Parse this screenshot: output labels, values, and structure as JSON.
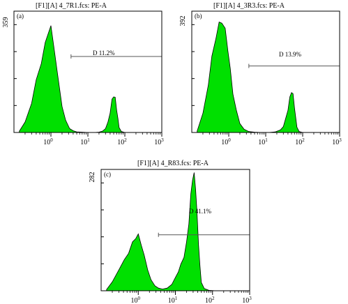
{
  "chart_data": [
    {
      "type": "area",
      "panel_label": "(a)",
      "title": "[F1][A] 4_7R1.fcs: PE-A",
      "ymax_label": "359",
      "xscale": "log",
      "xlim": [
        0.1,
        1000
      ],
      "ylim": [
        0,
        359
      ],
      "xticks": [
        {
          "value": 1,
          "label": "10",
          "exp": "0"
        },
        {
          "value": 10,
          "label": "10",
          "exp": "1"
        },
        {
          "value": 100,
          "label": "10",
          "exp": "2"
        },
        {
          "value": 1000,
          "label": "10",
          "exp": "3"
        }
      ],
      "fill_color": "#00e000",
      "x": [
        0.14,
        0.2,
        0.3,
        0.4,
        0.55,
        0.7,
        0.85,
        1.0,
        1.2,
        1.5,
        2.0,
        2.5,
        3.2,
        4.0,
        5.0,
        7.0,
        10,
        15,
        20,
        25,
        30,
        35,
        40,
        45,
        50,
        55,
        60,
        65,
        70,
        80,
        100,
        150
      ],
      "y": [
        4,
        30,
        90,
        150,
        210,
        260,
        300,
        310,
        260,
        170,
        80,
        35,
        12,
        5,
        2,
        1,
        0,
        0,
        1,
        4,
        12,
        30,
        60,
        95,
        110,
        100,
        70,
        40,
        15,
        3,
        0,
        0
      ],
      "gate": {
        "label": "D 11.2%",
        "x_start": 3.5,
        "x_end": 1000,
        "y": 225
      }
    },
    {
      "type": "area",
      "panel_label": "(b)",
      "title": "[F1][A] 4_3R3.fcs: PE-A",
      "ymax_label": "392",
      "xscale": "log",
      "xlim": [
        0.1,
        1000
      ],
      "ylim": [
        0,
        392
      ],
      "xticks": [
        {
          "value": 1,
          "label": "10",
          "exp": "0"
        },
        {
          "value": 10,
          "label": "10",
          "exp": "1"
        },
        {
          "value": 100,
          "label": "10",
          "exp": "2"
        },
        {
          "value": 1000,
          "label": "10",
          "exp": "3"
        }
      ],
      "fill_color": "#00e000",
      "x": [
        0.14,
        0.2,
        0.28,
        0.35,
        0.45,
        0.55,
        0.65,
        0.8,
        0.95,
        1.1,
        1.3,
        1.6,
        2.0,
        2.6,
        3.5,
        5.0,
        8,
        12,
        18,
        25,
        30,
        35,
        40,
        45,
        50,
        55,
        60,
        65,
        70,
        80,
        100,
        150
      ],
      "y": [
        5,
        60,
        160,
        240,
        310,
        350,
        360,
        330,
        270,
        200,
        130,
        70,
        30,
        10,
        3,
        1,
        0,
        0,
        2,
        8,
        20,
        45,
        75,
        110,
        135,
        120,
        85,
        45,
        18,
        3,
        0,
        0
      ],
      "gate": {
        "label": "D 13.9%",
        "x_start": 3.5,
        "x_end": 1000,
        "y": 215
      }
    },
    {
      "type": "area",
      "panel_label": "(c)",
      "title": "[F1][A] 4_R83.fcs: PE-A",
      "ymax_label": "282",
      "xscale": "log",
      "xlim": [
        0.1,
        1000
      ],
      "ylim": [
        0,
        282
      ],
      "xticks": [
        {
          "value": 1,
          "label": "10",
          "exp": "0"
        },
        {
          "value": 10,
          "label": "10",
          "exp": "1"
        },
        {
          "value": 100,
          "label": "10",
          "exp": "2"
        },
        {
          "value": 1000,
          "label": "10",
          "exp": "3"
        }
      ],
      "fill_color": "#00e000",
      "x": [
        0.14,
        0.2,
        0.3,
        0.42,
        0.55,
        0.7,
        0.85,
        1.0,
        1.2,
        1.45,
        1.8,
        2.2,
        2.8,
        3.5,
        4.5,
        6,
        8,
        10,
        12,
        14,
        17,
        20,
        23,
        26,
        29,
        32,
        35,
        38,
        42,
        46,
        50,
        60,
        80,
        120
      ],
      "y": [
        3,
        20,
        50,
        70,
        90,
        110,
        125,
        128,
        110,
        80,
        50,
        25,
        12,
        6,
        4,
        6,
        15,
        30,
        45,
        60,
        80,
        110,
        160,
        220,
        262,
        270,
        240,
        180,
        110,
        55,
        20,
        5,
        1,
        0
      ],
      "gate": {
        "label": "D 41.1%",
        "x_start": 3.5,
        "x_end": 1000,
        "y": 130
      }
    }
  ]
}
